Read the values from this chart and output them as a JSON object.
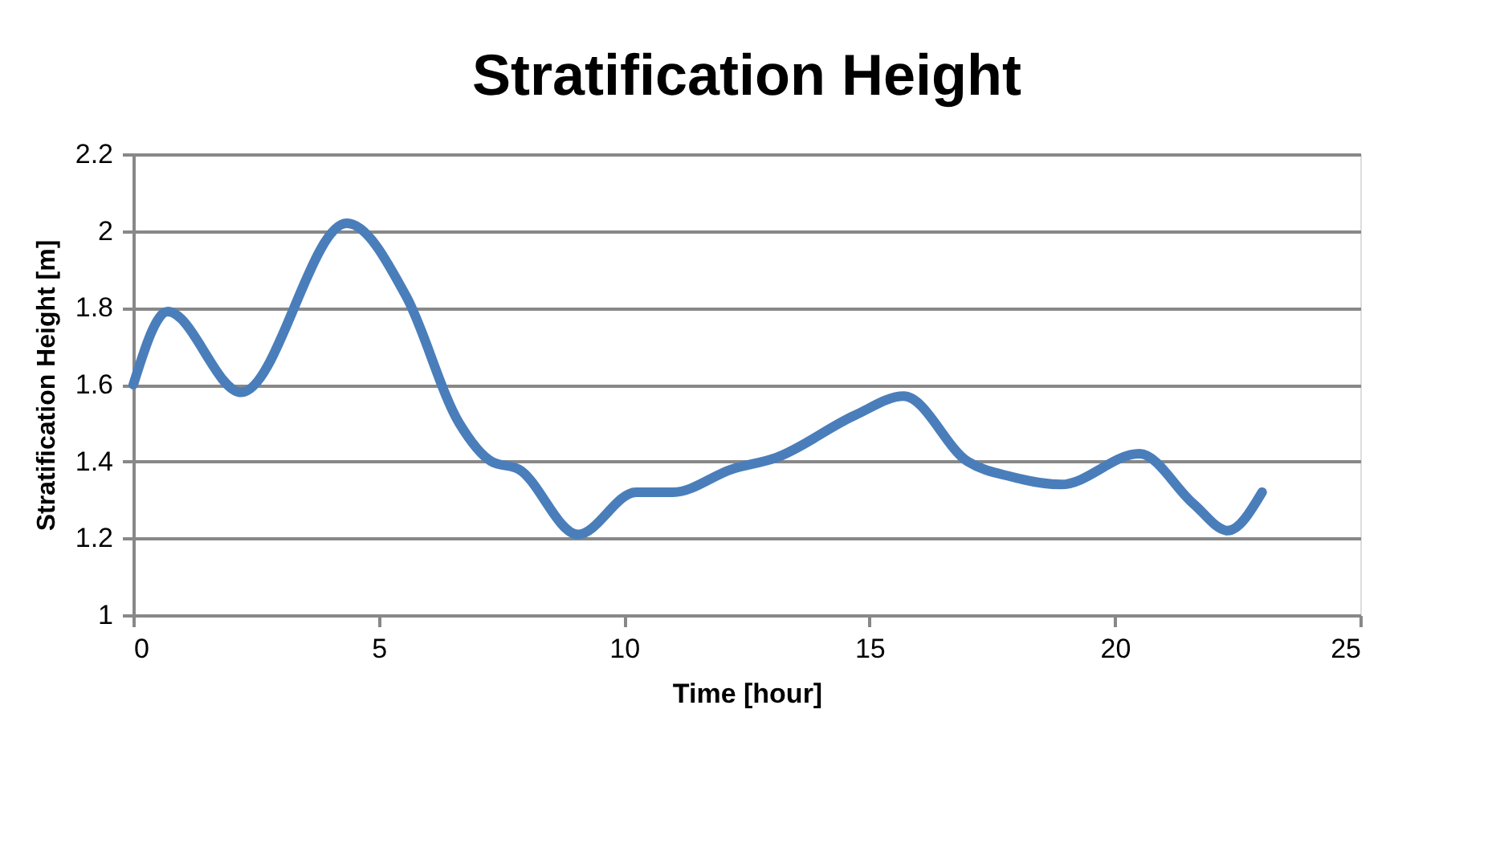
{
  "chart_data": {
    "type": "line",
    "title": "Stratification Height",
    "xlabel": "Time [hour]",
    "ylabel": "Stratification  Height  [m]",
    "x": [
      0,
      0.7,
      2.2,
      4.35,
      5.56,
      6.64,
      7.3,
      7.85,
      9.06,
      10.24,
      11.0,
      12.2,
      13.1,
      14.7,
      15.7,
      17.0,
      17.9,
      18.9,
      20.5,
      21.6,
      22.3,
      23.0
    ],
    "series": [
      {
        "color": "#4a7ebb",
        "values": [
          1.6,
          1.79,
          1.58,
          2.02,
          1.83,
          1.5,
          1.4,
          1.38,
          1.21,
          1.32,
          1.32,
          1.38,
          1.41,
          1.52,
          1.57,
          1.4,
          1.36,
          1.34,
          1.42,
          1.29,
          1.22,
          1.32
        ]
      }
    ],
    "xlim": [
      0,
      25
    ],
    "xticks": [
      0,
      5,
      10,
      15,
      20,
      25
    ],
    "ylim": [
      1,
      2.2
    ],
    "yticks": [
      1,
      1.2,
      1.4,
      1.6,
      1.8,
      2,
      2.2
    ],
    "grid": "y",
    "legend": false,
    "marker": "none",
    "line_style": "solid"
  }
}
